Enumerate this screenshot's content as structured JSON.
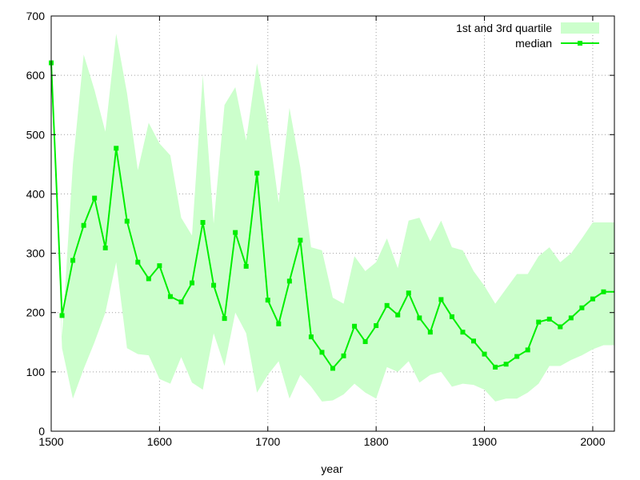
{
  "chart_data": {
    "type": "line",
    "title": "",
    "xlabel": "year",
    "ylabel": "",
    "xlim": [
      1500,
      2020
    ],
    "ylim": [
      0,
      700
    ],
    "xticks": [
      1500,
      1600,
      1700,
      1800,
      1900,
      2000
    ],
    "yticks": [
      0,
      100,
      200,
      300,
      400,
      500,
      600,
      700
    ],
    "grid": true,
    "legend_position": "top-right",
    "colors": {
      "band": "#ccffcc",
      "median": "#00ee00",
      "grid": "#a0a0a0",
      "axis": "#000000"
    },
    "x": [
      1500,
      1510,
      1520,
      1530,
      1540,
      1550,
      1560,
      1570,
      1580,
      1590,
      1600,
      1610,
      1620,
      1630,
      1640,
      1650,
      1660,
      1670,
      1680,
      1690,
      1700,
      1710,
      1720,
      1730,
      1740,
      1750,
      1760,
      1770,
      1780,
      1790,
      1800,
      1810,
      1820,
      1830,
      1840,
      1850,
      1860,
      1870,
      1880,
      1890,
      1900,
      1910,
      1920,
      1930,
      1940,
      1950,
      1960,
      1970,
      1980,
      1990,
      2000,
      2010,
      2020
    ],
    "series": [
      {
        "name": "1st and 3rd quartile",
        "kind": "band",
        "lower": [
          620,
          140,
          55,
          105,
          150,
          200,
          285,
          140,
          130,
          128,
          88,
          80,
          125,
          82,
          70,
          165,
          110,
          200,
          165,
          65,
          95,
          118,
          55,
          95,
          75,
          50,
          52,
          62,
          80,
          65,
          55,
          108,
          100,
          118,
          82,
          95,
          100,
          75,
          80,
          78,
          70,
          50,
          55,
          55,
          65,
          80,
          110,
          110,
          120,
          128,
          138,
          145,
          145
        ],
        "upper": [
          620,
          160,
          450,
          635,
          575,
          505,
          670,
          570,
          440,
          520,
          485,
          465,
          360,
          330,
          600,
          350,
          550,
          580,
          490,
          620,
          520,
          385,
          545,
          445,
          310,
          305,
          225,
          215,
          295,
          270,
          285,
          325,
          275,
          355,
          360,
          320,
          355,
          310,
          305,
          270,
          245,
          215,
          240,
          265,
          265,
          295,
          310,
          285,
          300,
          325,
          352,
          352,
          352
        ]
      },
      {
        "name": "median",
        "kind": "line",
        "values": [
          621,
          195,
          288,
          347,
          393,
          309,
          477,
          354,
          285,
          257,
          279,
          227,
          218,
          250,
          352,
          246,
          190,
          335,
          278,
          435,
          221,
          181,
          253,
          322,
          159,
          133,
          106,
          127,
          177,
          151,
          178,
          212,
          196,
          233,
          191,
          167,
          222,
          193,
          167,
          152,
          130,
          108,
          113,
          126,
          137,
          184,
          189,
          176,
          191,
          208,
          223,
          235,
          235
        ]
      }
    ]
  }
}
